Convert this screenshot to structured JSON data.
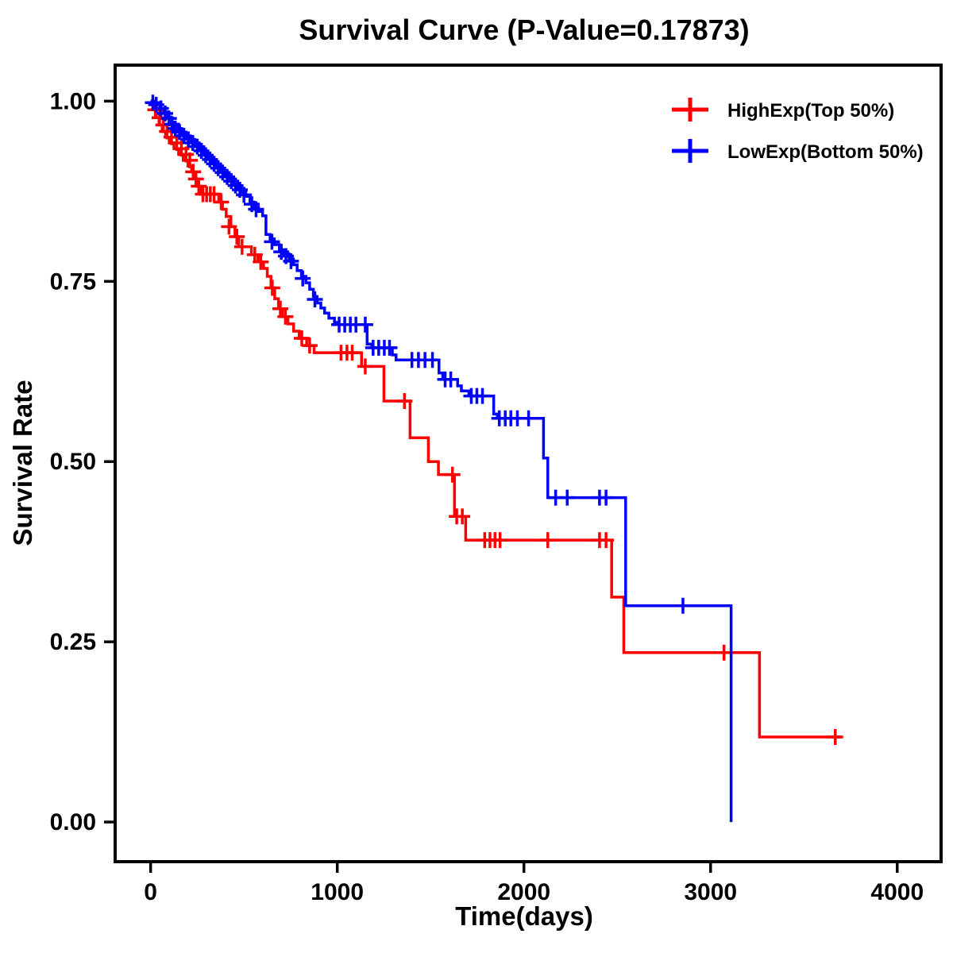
{
  "page": {
    "background": "#FFFFFF"
  },
  "chart_data": {
    "type": "line",
    "subtype": "kaplan-meier-step-curve",
    "title": "Survival Curve (P-Value=0.17873)",
    "p_value": "0.17873",
    "xlabel": "Time(days)",
    "ylabel": "Survival Rate",
    "xlim": [
      -190,
      4235
    ],
    "ylim": [
      -0.055,
      1.05
    ],
    "xticks": [
      0,
      1000,
      2000,
      3000,
      4000
    ],
    "xtick_labels": [
      "0",
      "1000",
      "2000",
      "3000",
      "4000"
    ],
    "yticks": [
      0,
      0.25,
      0.5,
      0.75,
      1
    ],
    "ytick_labels": [
      "0.00",
      "0.25",
      "0.50",
      "0.75",
      "1.00"
    ],
    "grid": false,
    "legend_position": "top-right",
    "axis_color": "#000000",
    "series": [
      {
        "name": "HighExp(Top 50%)",
        "color": "#FF0000",
        "step": "post",
        "end_x": 3700,
        "points": [
          [
            0,
            1.0
          ],
          [
            15,
            0.988
          ],
          [
            30,
            0.977
          ],
          [
            45,
            0.967
          ],
          [
            62,
            0.958
          ],
          [
            80,
            0.95
          ],
          [
            100,
            0.942
          ],
          [
            125,
            0.934
          ],
          [
            150,
            0.926
          ],
          [
            175,
            0.918
          ],
          [
            200,
            0.91
          ],
          [
            220,
            0.902
          ],
          [
            235,
            0.892
          ],
          [
            250,
            0.882
          ],
          [
            268,
            0.871
          ],
          [
            365,
            0.86
          ],
          [
            385,
            0.85
          ],
          [
            405,
            0.84
          ],
          [
            430,
            0.826
          ],
          [
            452,
            0.812
          ],
          [
            472,
            0.798
          ],
          [
            540,
            0.787
          ],
          [
            575,
            0.777
          ],
          [
            605,
            0.768
          ],
          [
            625,
            0.757
          ],
          [
            645,
            0.741
          ],
          [
            665,
            0.726
          ],
          [
            685,
            0.712
          ],
          [
            706,
            0.701
          ],
          [
            736,
            0.691
          ],
          [
            766,
            0.681
          ],
          [
            796,
            0.671
          ],
          [
            836,
            0.661
          ],
          [
            876,
            0.651
          ],
          [
            1130,
            0.632
          ],
          [
            1250,
            0.584
          ],
          [
            1390,
            0.533
          ],
          [
            1488,
            0.5
          ],
          [
            1542,
            0.482
          ],
          [
            1628,
            0.424
          ],
          [
            1688,
            0.391
          ],
          [
            2470,
            0.312
          ],
          [
            2535,
            0.235
          ],
          [
            3262,
            0.118
          ]
        ],
        "censor_marks": [
          [
            25,
            0.988
          ],
          [
            48,
            0.977
          ],
          [
            68,
            0.967
          ],
          [
            88,
            0.958
          ],
          [
            112,
            0.95
          ],
          [
            140,
            0.942
          ],
          [
            165,
            0.934
          ],
          [
            190,
            0.926
          ],
          [
            210,
            0.918
          ],
          [
            228,
            0.902
          ],
          [
            243,
            0.892
          ],
          [
            258,
            0.882
          ],
          [
            280,
            0.871
          ],
          [
            300,
            0.871
          ],
          [
            320,
            0.871
          ],
          [
            340,
            0.871
          ],
          [
            378,
            0.86
          ],
          [
            420,
            0.826
          ],
          [
            462,
            0.812
          ],
          [
            490,
            0.798
          ],
          [
            558,
            0.787
          ],
          [
            590,
            0.777
          ],
          [
            652,
            0.741
          ],
          [
            695,
            0.712
          ],
          [
            722,
            0.701
          ],
          [
            810,
            0.671
          ],
          [
            852,
            0.661
          ],
          [
            1020,
            0.651
          ],
          [
            1052,
            0.651
          ],
          [
            1080,
            0.651
          ],
          [
            1150,
            0.632
          ],
          [
            1360,
            0.584
          ],
          [
            1617,
            0.482
          ],
          [
            1640,
            0.424
          ],
          [
            1670,
            0.424
          ],
          [
            1790,
            0.391
          ],
          [
            1818,
            0.391
          ],
          [
            1845,
            0.391
          ],
          [
            1872,
            0.391
          ],
          [
            2128,
            0.391
          ],
          [
            2405,
            0.391
          ],
          [
            2440,
            0.391
          ],
          [
            3072,
            0.235
          ],
          [
            3668,
            0.118
          ]
        ]
      },
      {
        "name": "LowExp(Bottom 50%)",
        "color": "#0000FF",
        "step": "post",
        "end_x": 3110,
        "points": [
          [
            0,
            1.0
          ],
          [
            25,
            0.995
          ],
          [
            50,
            0.99
          ],
          [
            72,
            0.985
          ],
          [
            92,
            0.978
          ],
          [
            108,
            0.971
          ],
          [
            124,
            0.965
          ],
          [
            145,
            0.96
          ],
          [
            165,
            0.955
          ],
          [
            190,
            0.95
          ],
          [
            215,
            0.945
          ],
          [
            240,
            0.94
          ],
          [
            262,
            0.934
          ],
          [
            285,
            0.928
          ],
          [
            308,
            0.922
          ],
          [
            330,
            0.916
          ],
          [
            352,
            0.91
          ],
          [
            375,
            0.904
          ],
          [
            398,
            0.898
          ],
          [
            420,
            0.892
          ],
          [
            442,
            0.886
          ],
          [
            465,
            0.88
          ],
          [
            488,
            0.874
          ],
          [
            510,
            0.868
          ],
          [
            532,
            0.86
          ],
          [
            555,
            0.853
          ],
          [
            578,
            0.847
          ],
          [
            600,
            0.841
          ],
          [
            618,
            0.815
          ],
          [
            640,
            0.809
          ],
          [
            662,
            0.801
          ],
          [
            690,
            0.794
          ],
          [
            712,
            0.788
          ],
          [
            742,
            0.781
          ],
          [
            765,
            0.773
          ],
          [
            785,
            0.765
          ],
          [
            808,
            0.757
          ],
          [
            832,
            0.748
          ],
          [
            852,
            0.739
          ],
          [
            872,
            0.729
          ],
          [
            892,
            0.72
          ],
          [
            912,
            0.713
          ],
          [
            932,
            0.706
          ],
          [
            955,
            0.699
          ],
          [
            985,
            0.693
          ],
          [
            1005,
            0.69
          ],
          [
            1160,
            0.663
          ],
          [
            1185,
            0.658
          ],
          [
            1295,
            0.648
          ],
          [
            1315,
            0.641
          ],
          [
            1545,
            0.623
          ],
          [
            1565,
            0.614
          ],
          [
            1645,
            0.605
          ],
          [
            1665,
            0.598
          ],
          [
            1705,
            0.591
          ],
          [
            1838,
            0.566
          ],
          [
            1858,
            0.56
          ],
          [
            2105,
            0.505
          ],
          [
            2128,
            0.45
          ],
          [
            2545,
            0.3
          ],
          [
            3110,
            0.0
          ]
        ],
        "censor_marks": [
          [
            12,
            0.998
          ],
          [
            30,
            0.995
          ],
          [
            55,
            0.99
          ],
          [
            78,
            0.983
          ],
          [
            98,
            0.976
          ],
          [
            115,
            0.968
          ],
          [
            132,
            0.962
          ],
          [
            155,
            0.957
          ],
          [
            178,
            0.952
          ],
          [
            202,
            0.947
          ],
          [
            226,
            0.942
          ],
          [
            250,
            0.937
          ],
          [
            272,
            0.931
          ],
          [
            295,
            0.925
          ],
          [
            318,
            0.919
          ],
          [
            340,
            0.913
          ],
          [
            362,
            0.907
          ],
          [
            386,
            0.901
          ],
          [
            410,
            0.895
          ],
          [
            432,
            0.889
          ],
          [
            455,
            0.883
          ],
          [
            478,
            0.877
          ],
          [
            500,
            0.87
          ],
          [
            542,
            0.857
          ],
          [
            565,
            0.85
          ],
          [
            650,
            0.805
          ],
          [
            700,
            0.791
          ],
          [
            725,
            0.785
          ],
          [
            752,
            0.778
          ],
          [
            815,
            0.754
          ],
          [
            880,
            0.725
          ],
          [
            1010,
            0.69
          ],
          [
            1040,
            0.69
          ],
          [
            1070,
            0.69
          ],
          [
            1100,
            0.69
          ],
          [
            1150,
            0.69
          ],
          [
            1192,
            0.658
          ],
          [
            1222,
            0.658
          ],
          [
            1252,
            0.658
          ],
          [
            1280,
            0.658
          ],
          [
            1400,
            0.641
          ],
          [
            1435,
            0.641
          ],
          [
            1470,
            0.641
          ],
          [
            1510,
            0.641
          ],
          [
            1578,
            0.614
          ],
          [
            1608,
            0.614
          ],
          [
            1718,
            0.591
          ],
          [
            1748,
            0.591
          ],
          [
            1778,
            0.591
          ],
          [
            1868,
            0.56
          ],
          [
            1900,
            0.56
          ],
          [
            1930,
            0.56
          ],
          [
            1965,
            0.56
          ],
          [
            2025,
            0.56
          ],
          [
            2170,
            0.45
          ],
          [
            2232,
            0.45
          ],
          [
            2405,
            0.45
          ],
          [
            2440,
            0.45
          ],
          [
            2852,
            0.3
          ]
        ]
      }
    ]
  }
}
